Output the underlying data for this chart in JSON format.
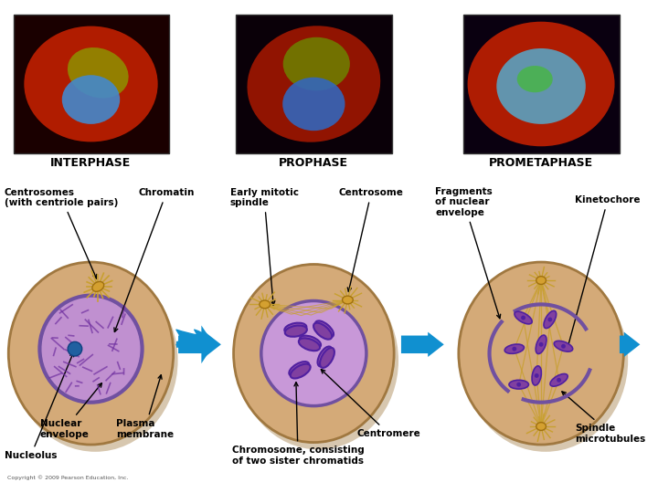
{
  "bg_color": "#ffffff",
  "title_interphase": "INTERPHASE",
  "title_prophase": "PROPHASE",
  "title_prometaphase": "PROMETAPHASE",
  "cell_bg": "#deb887",
  "cell_bg_light": "#e8c99a",
  "nucleus_fill": "#c8a0d8",
  "nucleus_border": "#9060a0",
  "chromatin_color": "#8040a0",
  "centrosome_color": "#c8a030",
  "arrow_color": "#1090d0",
  "label_fontsize": 7.5,
  "title_fontsize": 9,
  "annotation_color": "#000000"
}
